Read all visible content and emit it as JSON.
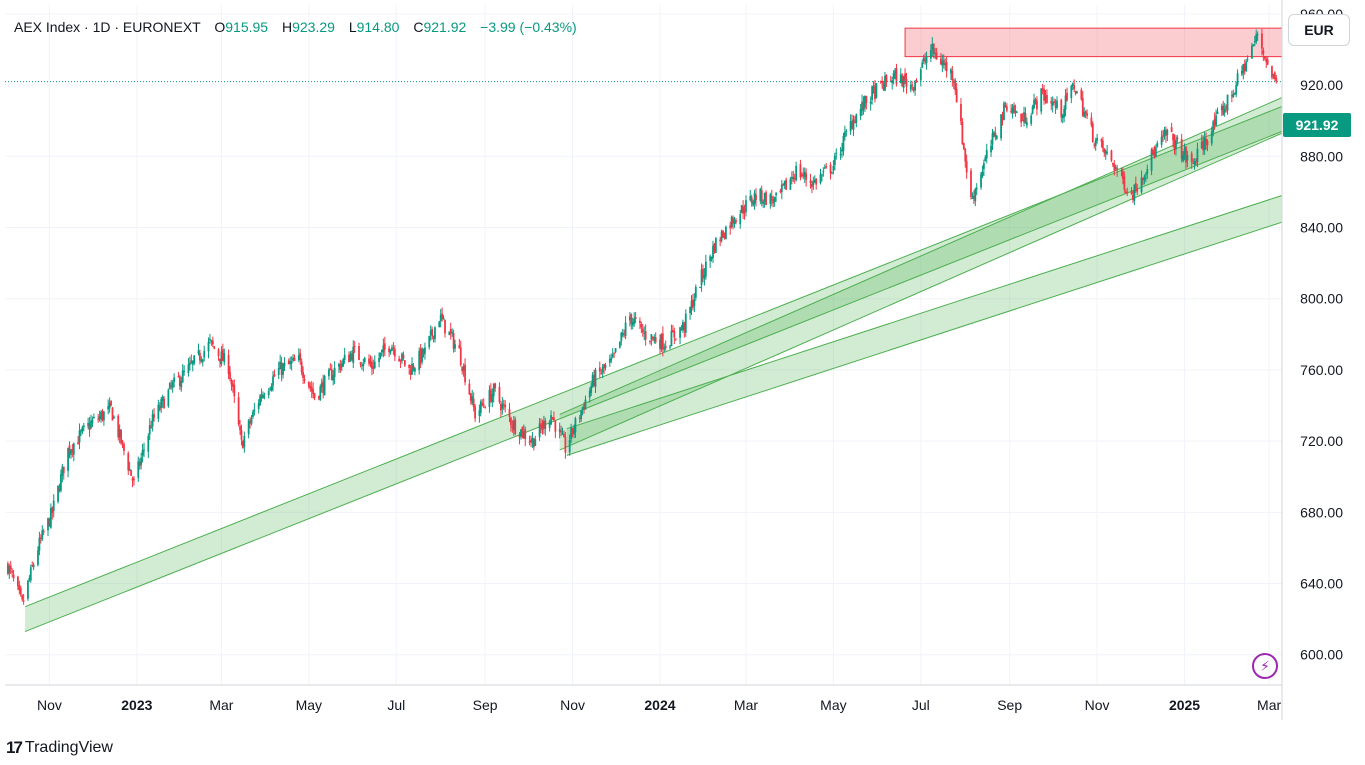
{
  "header": {
    "title": "AEX Index · 1D · EURONEXT",
    "open_label": "O",
    "open_value": "915.95",
    "high_label": "H",
    "high_value": "923.29",
    "low_label": "L",
    "low_value": "914.80",
    "close_label": "C",
    "close_value": "921.92",
    "change": "−3.99 (−0.43%)"
  },
  "currency": "EUR",
  "last_price_tag": "921.92",
  "brand": {
    "logo": "17",
    "name": "TradingView"
  },
  "colors": {
    "up": "#089981",
    "down": "#f23645",
    "channel_fill": "rgba(76,175,80,0.25)",
    "channel_stroke": "#4caf50",
    "resistance_fill": "rgba(242,54,69,0.25)",
    "resistance_stroke": "#f23645",
    "grid": "#f0f3fa",
    "alert_icon": "#9c27b0"
  },
  "chart_data": {
    "type": "candlestick",
    "title": "AEX Index · 1D · EURONEXT",
    "y_axis": {
      "ticks": [
        960,
        920,
        880,
        840,
        800,
        760,
        720,
        680,
        640,
        600
      ],
      "tick_labels": [
        "960.00",
        "920.00",
        "880.00",
        "840.00",
        "800.00",
        "760.00",
        "720.00",
        "680.00",
        "640.00",
        "600.00"
      ],
      "ylim": [
        583,
        965
      ],
      "side": "right"
    },
    "x_axis": {
      "tick_labels": [
        "Nov",
        "2023",
        "Mar",
        "May",
        "Jul",
        "Sep",
        "Nov",
        "2024",
        "Mar",
        "May",
        "Jul",
        "Sep",
        "Nov",
        "2025",
        "Mar"
      ],
      "tick_dates": [
        "2022-11-01",
        "2023-01-01",
        "2023-03-01",
        "2023-05-01",
        "2023-07-01",
        "2023-09-01",
        "2023-11-01",
        "2024-01-01",
        "2024-03-01",
        "2024-05-01",
        "2024-07-01",
        "2024-09-01",
        "2024-11-01",
        "2025-01-01",
        "2025-03-01"
      ],
      "bold_ticks": [
        "2023",
        "2024",
        "2025"
      ]
    },
    "close_path": [
      [
        "2022-10-03",
        650
      ],
      [
        "2022-10-13",
        628
      ],
      [
        "2022-10-24",
        660
      ],
      [
        "2022-11-03",
        680
      ],
      [
        "2022-11-14",
        715
      ],
      [
        "2022-11-30",
        730
      ],
      [
        "2022-12-14",
        738
      ],
      [
        "2022-12-30",
        696
      ],
      [
        "2023-01-11",
        730
      ],
      [
        "2023-01-25",
        750
      ],
      [
        "2023-02-08",
        762
      ],
      [
        "2023-02-21",
        775
      ],
      [
        "2023-03-06",
        762
      ],
      [
        "2023-03-15",
        718
      ],
      [
        "2023-03-28",
        745
      ],
      [
        "2023-04-10",
        760
      ],
      [
        "2023-04-24",
        765
      ],
      [
        "2023-05-05",
        745
      ],
      [
        "2023-05-19",
        760
      ],
      [
        "2023-06-01",
        770
      ],
      [
        "2023-06-14",
        762
      ],
      [
        "2023-06-27",
        775
      ],
      [
        "2023-07-10",
        760
      ],
      [
        "2023-07-21",
        770
      ],
      [
        "2023-07-31",
        790
      ],
      [
        "2023-08-14",
        770
      ],
      [
        "2023-08-25",
        735
      ],
      [
        "2023-09-07",
        748
      ],
      [
        "2023-09-20",
        730
      ],
      [
        "2023-10-04",
        720
      ],
      [
        "2023-10-17",
        735
      ],
      [
        "2023-10-27",
        716
      ],
      [
        "2023-11-06",
        735
      ],
      [
        "2023-11-16",
        755
      ],
      [
        "2023-11-29",
        765
      ],
      [
        "2023-12-11",
        790
      ],
      [
        "2023-12-21",
        780
      ],
      [
        "2024-01-05",
        775
      ],
      [
        "2024-01-18",
        785
      ],
      [
        "2024-01-29",
        810
      ],
      [
        "2024-02-08",
        830
      ],
      [
        "2024-02-21",
        845
      ],
      [
        "2024-03-08",
        858
      ],
      [
        "2024-03-22",
        855
      ],
      [
        "2024-04-05",
        872
      ],
      [
        "2024-04-17",
        865
      ],
      [
        "2024-05-01",
        875
      ],
      [
        "2024-05-14",
        900
      ],
      [
        "2024-05-28",
        915
      ],
      [
        "2024-06-12",
        925
      ],
      [
        "2024-06-25",
        920
      ],
      [
        "2024-07-08",
        940
      ],
      [
        "2024-07-24",
        925
      ],
      [
        "2024-08-05",
        855
      ],
      [
        "2024-08-16",
        880
      ],
      [
        "2024-08-30",
        910
      ],
      [
        "2024-09-10",
        900
      ],
      [
        "2024-09-24",
        915
      ],
      [
        "2024-10-07",
        905
      ],
      [
        "2024-10-16",
        920
      ],
      [
        "2024-10-30",
        890
      ],
      [
        "2024-11-13",
        875
      ],
      [
        "2024-11-25",
        858
      ],
      [
        "2024-12-09",
        880
      ],
      [
        "2024-12-20",
        893
      ],
      [
        "2025-01-06",
        875
      ],
      [
        "2025-01-20",
        895
      ],
      [
        "2025-02-03",
        915
      ],
      [
        "2025-02-14",
        935
      ],
      [
        "2025-02-21",
        948
      ],
      [
        "2025-03-03",
        925
      ],
      [
        "2025-03-06",
        921.92
      ]
    ],
    "last_price": 921.92,
    "drawings": [
      {
        "type": "parallel_channel",
        "p1": [
          "2022-10-15",
          627
        ],
        "p2": [
          "2025-03-10",
          908
        ],
        "offset": -14
      },
      {
        "type": "parallel_channel",
        "p1": [
          "2023-10-23",
          715
        ],
        "p2": [
          "2025-03-10",
          893
        ],
        "offset": 20
      },
      {
        "type": "parallel_channel",
        "p1": [
          "2023-10-28",
          712
        ],
        "p2": [
          "2025-03-10",
          843
        ],
        "offset": 15
      },
      {
        "type": "rectangle",
        "from": [
          "2024-06-20",
          952
        ],
        "to": [
          "2025-03-10",
          936
        ]
      }
    ]
  }
}
